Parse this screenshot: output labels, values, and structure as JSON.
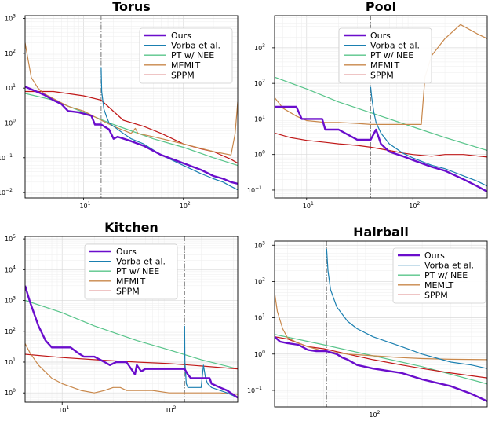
{
  "colors": {
    "Ours": "#6a0dcc",
    "Vorba et al.": "#1a7fb0",
    "PT w/ NEE": "#58c48a",
    "MEMLT": "#c8874a",
    "SPPM": "#c01818"
  },
  "chart_data": [
    {
      "type": "line",
      "title": "Torus",
      "xscale": "log",
      "yscale": "log",
      "xlim": [
        2.6,
        350
      ],
      "ylim": [
        0.007,
        1200
      ],
      "xticks": [
        {
          "v": 10,
          "m": "10",
          "e": "1"
        },
        {
          "v": 100,
          "m": "10",
          "e": "2"
        }
      ],
      "yticks": [
        {
          "v": 0.01,
          "m": "10",
          "e": "−2"
        },
        {
          "v": 0.1,
          "m": "10",
          "e": "−1"
        },
        {
          "v": 1,
          "m": "10",
          "e": "0"
        },
        {
          "v": 10,
          "m": "10",
          "e": "1"
        },
        {
          "v": 100,
          "m": "10",
          "e": "2"
        },
        {
          "v": 1000,
          "m": "10",
          "e": "3"
        }
      ],
      "vline": 15,
      "legend": "top-right",
      "series": [
        {
          "name": "Ours",
          "x": [
            2.6,
            4,
            5,
            6,
            7,
            9,
            12,
            13,
            14,
            15,
            18,
            20,
            22,
            30,
            40,
            60,
            100,
            150,
            200,
            250,
            300,
            350
          ],
          "y": [
            11,
            6.5,
            4.5,
            3.5,
            2.2,
            2.0,
            1.6,
            0.9,
            0.9,
            0.9,
            0.65,
            0.35,
            0.4,
            0.3,
            0.22,
            0.12,
            0.07,
            0.045,
            0.03,
            0.025,
            0.02,
            0.018
          ]
        },
        {
          "name": "Vorba et al.",
          "x": [
            15,
            15.2,
            16,
            17,
            18,
            20,
            25,
            30,
            40,
            60,
            100,
            150,
            200,
            250,
            300,
            350
          ],
          "y": [
            40,
            8,
            2.5,
            1.5,
            1.0,
            0.8,
            0.5,
            0.35,
            0.25,
            0.12,
            0.06,
            0.035,
            0.025,
            0.02,
            0.015,
            0.012
          ]
        },
        {
          "name": "PT w/ NEE",
          "x": [
            2.6,
            5,
            10,
            20,
            50,
            100,
            200,
            350
          ],
          "y": [
            7,
            4.5,
            2,
            0.9,
            0.35,
            0.2,
            0.1,
            0.06
          ]
        },
        {
          "name": "MEMLT",
          "x": [
            2.6,
            2.8,
            3,
            3.5,
            4,
            5,
            7,
            10,
            15,
            20,
            30,
            33,
            35,
            50,
            100,
            200,
            300,
            330,
            350
          ],
          "y": [
            200,
            60,
            20,
            10,
            7,
            5,
            3,
            2.2,
            1.2,
            0.8,
            0.5,
            0.7,
            0.5,
            0.4,
            0.25,
            0.15,
            0.12,
            0.5,
            4
          ]
        },
        {
          "name": "SPPM",
          "x": [
            2.6,
            5,
            10,
            15,
            25,
            40,
            60,
            100,
            150,
            200,
            300,
            350
          ],
          "y": [
            8,
            8,
            6,
            4.5,
            1.2,
            0.8,
            0.5,
            0.25,
            0.18,
            0.15,
            0.09,
            0.07
          ]
        }
      ]
    },
    {
      "type": "line",
      "title": "Pool",
      "xscale": "log",
      "yscale": "log",
      "xlim": [
        5,
        500
      ],
      "ylim": [
        0.06,
        8000
      ],
      "xticks": [
        {
          "v": 10,
          "m": "10",
          "e": "1"
        },
        {
          "v": 100,
          "m": "10",
          "e": "2"
        }
      ],
      "yticks": [
        {
          "v": 0.1,
          "m": "10",
          "e": "−1"
        },
        {
          "v": 1,
          "m": "10",
          "e": "0"
        },
        {
          "v": 10,
          "m": "10",
          "e": "1"
        },
        {
          "v": 100,
          "m": "10",
          "e": "2"
        },
        {
          "v": 1000,
          "m": "10",
          "e": "3"
        }
      ],
      "vline": 40,
      "legend": "top-left",
      "series": [
        {
          "name": "Ours",
          "x": [
            5,
            8,
            9,
            10,
            14,
            15,
            20,
            30,
            40,
            45,
            50,
            60,
            80,
            100,
            150,
            200,
            300,
            400,
            500
          ],
          "y": [
            22,
            22,
            10,
            10,
            10,
            5,
            5,
            2.6,
            2.6,
            5,
            2,
            1.2,
            0.9,
            0.7,
            0.45,
            0.35,
            0.2,
            0.13,
            0.09
          ]
        },
        {
          "name": "Vorba et al.",
          "x": [
            40,
            41,
            43,
            45,
            50,
            60,
            80,
            100,
            150,
            200,
            300,
            400,
            500
          ],
          "y": [
            80,
            40,
            15,
            8,
            4,
            2,
            1.1,
            0.8,
            0.5,
            0.4,
            0.25,
            0.18,
            0.13
          ]
        },
        {
          "name": "PT w/ NEE",
          "x": [
            5,
            10,
            20,
            50,
            100,
            200,
            500
          ],
          "y": [
            150,
            70,
            30,
            12,
            6,
            3,
            1.3
          ]
        },
        {
          "name": "MEMLT",
          "x": [
            5,
            6,
            8,
            10,
            15,
            20,
            30,
            40,
            50,
            80,
            120,
            130,
            150,
            200,
            280,
            400,
            500
          ],
          "y": [
            40,
            20,
            12,
            9,
            8,
            8,
            7.5,
            7,
            7,
            7,
            7,
            150,
            600,
            1800,
            4500,
            2500,
            1800
          ]
        },
        {
          "name": "SPPM",
          "x": [
            5,
            7,
            10,
            15,
            20,
            30,
            40,
            60,
            80,
            100,
            150,
            200,
            300,
            500
          ],
          "y": [
            4,
            3,
            2.5,
            2.2,
            2.0,
            1.8,
            1.6,
            1.3,
            1.1,
            1.0,
            0.9,
            1.0,
            1.0,
            0.85
          ]
        }
      ]
    },
    {
      "type": "line",
      "title": "Kitchen",
      "xscale": "log",
      "yscale": "log",
      "xlim": [
        4.5,
        440
      ],
      "ylim": [
        0.5,
        120000
      ],
      "xticks": [
        {
          "v": 10,
          "m": "10",
          "e": "1"
        },
        {
          "v": 100,
          "m": "10",
          "e": "2"
        }
      ],
      "yticks": [
        {
          "v": 1,
          "m": "10",
          "e": "0"
        },
        {
          "v": 10,
          "m": "10",
          "e": "1"
        },
        {
          "v": 100,
          "m": "10",
          "e": "2"
        },
        {
          "v": 1000,
          "m": "10",
          "e": "3"
        },
        {
          "v": 10000,
          "m": "10",
          "e": "4"
        },
        {
          "v": 100000,
          "m": "10",
          "e": "5"
        }
      ],
      "vline": 140,
      "legend": "top-left",
      "series": [
        {
          "name": "Ours",
          "x": [
            4.5,
            5,
            6,
            7,
            8,
            10,
            12,
            14,
            16,
            20,
            25,
            28,
            32,
            35,
            40,
            48,
            50,
            55,
            60,
            70,
            80,
            100,
            120,
            140,
            150,
            160,
            180,
            200,
            240,
            250,
            300,
            350,
            440
          ],
          "y": [
            3000,
            900,
            150,
            50,
            30,
            30,
            30,
            20,
            15,
            15,
            10,
            8,
            10,
            10,
            10,
            4,
            8,
            5,
            6,
            6,
            6,
            6,
            6,
            6,
            4,
            3,
            3,
            3,
            3,
            2,
            1.5,
            1.2,
            0.7
          ]
        },
        {
          "name": "Vorba et al.",
          "x": [
            140,
            141,
            145,
            150,
            180,
            200,
            210,
            220,
            230,
            250,
            300,
            350,
            440
          ],
          "y": [
            150,
            10,
            2,
            1.5,
            1.5,
            1.5,
            8,
            3,
            2,
            1.5,
            1.2,
            1.0,
            0.7
          ]
        },
        {
          "name": "PT w/ NEE",
          "x": [
            4.5,
            10,
            20,
            50,
            100,
            200,
            440
          ],
          "y": [
            1000,
            400,
            150,
            50,
            25,
            12,
            6
          ]
        },
        {
          "name": "MEMLT",
          "x": [
            4.5,
            5,
            6,
            8,
            10,
            15,
            20,
            25,
            30,
            35,
            40,
            50,
            70,
            100,
            200,
            300,
            440
          ],
          "y": [
            40,
            20,
            8,
            3,
            2,
            1.2,
            1.0,
            1.2,
            1.5,
            1.5,
            1.2,
            1.2,
            1.2,
            1.0,
            1.0,
            1.0,
            0.9
          ]
        },
        {
          "name": "SPPM",
          "x": [
            4.5,
            10,
            20,
            50,
            100,
            200,
            440
          ],
          "y": [
            18,
            14,
            12,
            10,
            9,
            7.5,
            6
          ]
        }
      ]
    },
    {
      "type": "line",
      "title": "Hairball",
      "xscale": "log",
      "yscale": "log",
      "xlim": [
        25,
        500
      ],
      "ylim": [
        0.035,
        1300
      ],
      "xticks": [
        {
          "v": 100,
          "m": "10",
          "e": "2"
        }
      ],
      "yticks": [
        {
          "v": 0.1,
          "m": "10",
          "e": "−1"
        },
        {
          "v": 1,
          "m": "10",
          "e": "0"
        },
        {
          "v": 10,
          "m": "10",
          "e": "1"
        },
        {
          "v": 100,
          "m": "10",
          "e": "2"
        },
        {
          "v": 1000,
          "m": "10",
          "e": "3"
        }
      ],
      "vline": 52,
      "legend": "top-right",
      "series": [
        {
          "name": "Ours",
          "x": [
            25,
            27,
            30,
            35,
            40,
            45,
            52,
            60,
            65,
            70,
            80,
            100,
            150,
            200,
            300,
            400,
            500
          ],
          "y": [
            3,
            2.2,
            2.0,
            1.8,
            1.3,
            1.2,
            1.2,
            1.0,
            0.8,
            0.7,
            0.5,
            0.4,
            0.3,
            0.2,
            0.13,
            0.08,
            0.05
          ]
        },
        {
          "name": "Vorba et al.",
          "x": [
            52,
            53,
            55,
            60,
            70,
            80,
            100,
            150,
            200,
            300,
            400,
            500
          ],
          "y": [
            800,
            200,
            60,
            20,
            8,
            5,
            3,
            1.6,
            1.0,
            0.6,
            0.5,
            0.4
          ]
        },
        {
          "name": "PT w/ NEE",
          "x": [
            25,
            50,
            100,
            200,
            500
          ],
          "y": [
            3.5,
            1.8,
            0.9,
            0.45,
            0.15
          ]
        },
        {
          "name": "MEMLT",
          "x": [
            25,
            26,
            28,
            30,
            35,
            40,
            50,
            70,
            100,
            150,
            200,
            300,
            500
          ],
          "y": [
            50,
            15,
            5,
            2.8,
            2.0,
            1.6,
            1.2,
            1.0,
            0.9,
            0.8,
            0.75,
            0.72,
            0.7
          ]
        },
        {
          "name": "SPPM",
          "x": [
            25,
            30,
            40,
            50,
            70,
            100,
            150,
            200,
            300,
            500
          ],
          "y": [
            3,
            2.6,
            1.6,
            1.4,
            1.0,
            0.7,
            0.5,
            0.4,
            0.3,
            0.22
          ]
        }
      ]
    }
  ]
}
